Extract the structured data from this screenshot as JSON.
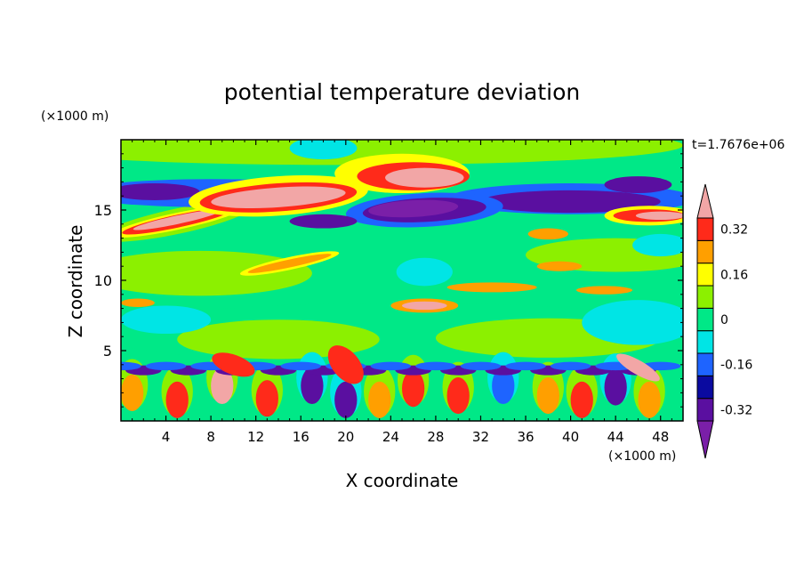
{
  "chart_data": {
    "type": "heatmap",
    "title": "potential temperature deviation",
    "xlabel": "X coordinate",
    "ylabel": "Z coordinate",
    "x_unit": "(×1000 m)",
    "y_unit": "(×1000 m)",
    "time_label": "t=1.7676e+06",
    "xlim": [
      0,
      50
    ],
    "ylim": [
      0,
      20
    ],
    "x_ticks": [
      4,
      8,
      12,
      16,
      20,
      24,
      28,
      32,
      36,
      40,
      44,
      48
    ],
    "y_ticks": [
      5,
      10,
      15
    ],
    "grid": false,
    "colorbar": {
      "levels": [
        -0.4,
        -0.32,
        -0.24,
        -0.16,
        -0.08,
        0,
        0.08,
        0.16,
        0.24,
        0.32,
        0.4
      ],
      "labels": [
        "0.32",
        "0.16",
        "0",
        "-0.16",
        "-0.32"
      ],
      "label_values": [
        0.32,
        0.16,
        0,
        -0.16,
        -0.32
      ],
      "colors": [
        "#7a1fa8",
        "#5a0fa0",
        "#0a0aa0",
        "#1e64ff",
        "#00e5e5",
        "#00e887",
        "#8cf000",
        "#ffff00",
        "#ff9f00",
        "#ff2a1a",
        "#f2a6a6"
      ],
      "extend": "both"
    },
    "features": [
      {
        "x": 14,
        "z": 16,
        "level": 0.4
      },
      {
        "x": 27,
        "z": 17,
        "level": 0.4
      },
      {
        "x": 5,
        "z": 14,
        "level": 0.4
      },
      {
        "x": 27,
        "z": 15,
        "level": -0.4
      },
      {
        "x": 40,
        "z": 15,
        "level": -0.32
      },
      {
        "x": 1.5,
        "z": 16.3,
        "level": -0.32
      },
      {
        "x": 47,
        "z": 14.5,
        "level": 0.32
      },
      {
        "x": 18,
        "z": 19,
        "level": -0.08
      },
      {
        "x": 27,
        "z": 10.5,
        "level": -0.08
      },
      {
        "x": 27,
        "z": 8.2,
        "level": 0.4
      },
      {
        "x": 15,
        "z": 11.5,
        "level": 0.24
      },
      {
        "x": 34,
        "z": 9.5,
        "level": 0.24
      },
      {
        "x": 44,
        "z": 9.3,
        "level": 0.24
      },
      {
        "x": 10,
        "z": 3,
        "level": 0.32
      },
      {
        "x": 30,
        "z": 3,
        "level": 0.32
      },
      {
        "x": 20,
        "z": 2.5,
        "level": -0.32
      },
      {
        "x": 46,
        "z": 4,
        "level": 0.4
      }
    ]
  }
}
